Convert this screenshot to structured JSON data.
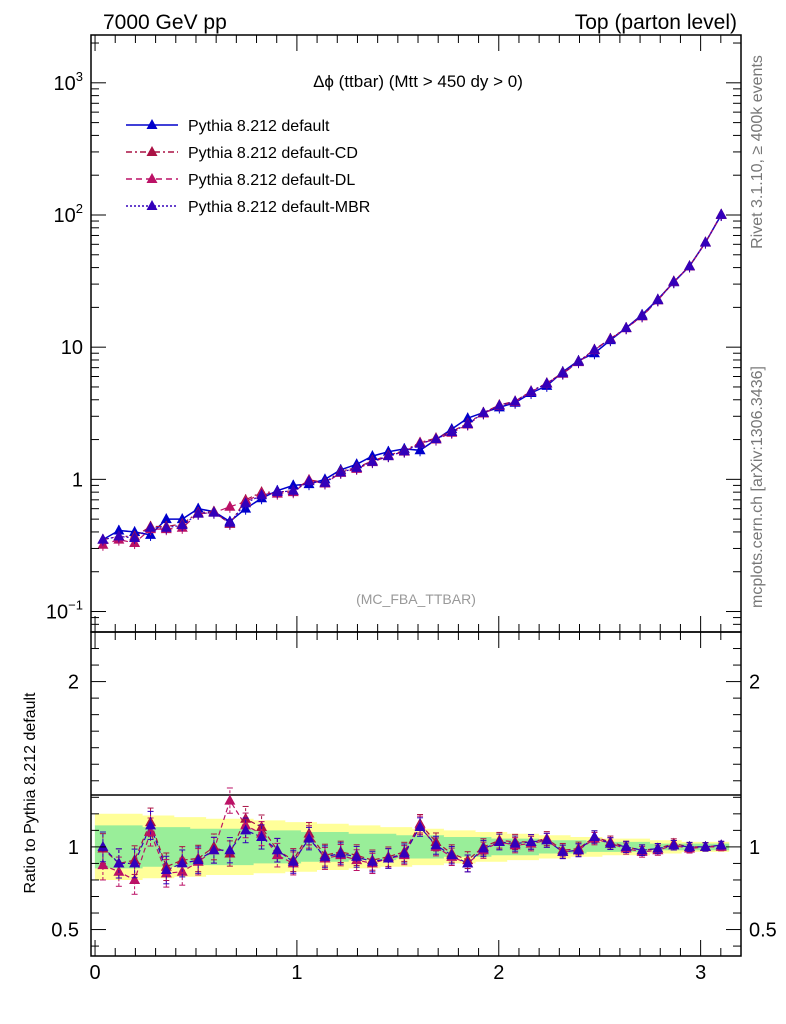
{
  "header": {
    "left": "7000 GeV pp",
    "right": "Top (parton level)"
  },
  "side_labels": {
    "rivet": "Rivet 3.1.10, ≥ 400k events",
    "mcplots": "mcplots.cern.ch [arXiv:1306.3436]"
  },
  "chart_data": [
    {
      "type": "line",
      "title": "Δϕ (ttbar) (Mtt > 450 dy > 0)",
      "watermark": "(MC_FBA_TTBAR)",
      "xlabel": "",
      "ylabel": "",
      "xlim": [
        -0.02,
        3.2
      ],
      "ylim": [
        0.07,
        2300
      ],
      "yscale": "log",
      "y_ticks": [
        {
          "value": 0.1,
          "base": "10",
          "exp": "−1"
        },
        {
          "value": 1,
          "base": "1",
          "exp": ""
        },
        {
          "value": 10,
          "base": "10",
          "exp": ""
        },
        {
          "value": 100,
          "base": "10",
          "exp": "2"
        },
        {
          "value": 1000,
          "base": "10",
          "exp": "3"
        }
      ],
      "legend_position": "top-left",
      "x": [
        0.039,
        0.118,
        0.196,
        0.275,
        0.353,
        0.432,
        0.511,
        0.589,
        0.668,
        0.746,
        0.825,
        0.903,
        0.982,
        1.06,
        1.139,
        1.217,
        1.296,
        1.374,
        1.453,
        1.532,
        1.61,
        1.689,
        1.767,
        1.846,
        1.924,
        2.003,
        2.081,
        2.16,
        2.238,
        2.317,
        2.395,
        2.474,
        2.553,
        2.631,
        2.71,
        2.788,
        2.867,
        2.945,
        3.024,
        3.102
      ],
      "series": [
        {
          "name": "Pythia 8.212 default",
          "color": "#0000cc",
          "style": "solid",
          "values": [
            0.35,
            0.41,
            0.4,
            0.38,
            0.5,
            0.5,
            0.6,
            0.57,
            0.48,
            0.6,
            0.72,
            0.82,
            0.9,
            0.92,
            1.0,
            1.18,
            1.3,
            1.5,
            1.62,
            1.7,
            1.66,
            2.0,
            2.4,
            2.9,
            3.2,
            3.5,
            3.8,
            4.5,
            5.1,
            6.5,
            7.9,
            9.0,
            11.3,
            14.0,
            17.6,
            23.0,
            31.0,
            41.0,
            62.0,
            100.0
          ]
        },
        {
          "name": "Pythia 8.212 default-CD",
          "color": "#aa1144",
          "style": "dashdot",
          "values": [
            0.35,
            0.37,
            0.37,
            0.44,
            0.44,
            0.46,
            0.56,
            0.57,
            0.46,
            0.7,
            0.8,
            0.8,
            0.82,
            0.99,
            0.95,
            1.15,
            1.23,
            1.38,
            1.52,
            1.65,
            1.9,
            2.05,
            2.3,
            2.65,
            3.2,
            3.65,
            3.9,
            4.65,
            5.35,
            6.4,
            7.8,
            9.6,
            11.6,
            14.0,
            17.3,
            22.8,
            31.5,
            41.0,
            62.0,
            101.0
          ]
        },
        {
          "name": "Pythia 8.212 default-DL",
          "color": "#bb1166",
          "style": "dashed",
          "values": [
            0.32,
            0.35,
            0.33,
            0.42,
            0.42,
            0.43,
            0.55,
            0.56,
            0.62,
            0.68,
            0.78,
            0.78,
            0.8,
            0.98,
            0.93,
            1.12,
            1.2,
            1.35,
            1.5,
            1.62,
            1.88,
            2.0,
            2.25,
            2.6,
            3.15,
            3.6,
            3.85,
            4.6,
            5.3,
            6.3,
            7.7,
            9.5,
            11.5,
            13.9,
            17.1,
            22.6,
            31.2,
            40.8,
            61.8,
            100.5
          ]
        },
        {
          "name": "Pythia 8.212 default-MBR",
          "color": "#3300bb",
          "style": "dotted",
          "values": [
            0.35,
            0.37,
            0.36,
            0.43,
            0.43,
            0.45,
            0.55,
            0.56,
            0.47,
            0.66,
            0.76,
            0.8,
            0.82,
            0.97,
            0.94,
            1.13,
            1.22,
            1.36,
            1.5,
            1.63,
            1.86,
            2.02,
            2.28,
            2.62,
            3.18,
            3.62,
            3.88,
            4.62,
            5.32,
            6.35,
            7.75,
            9.55,
            11.5,
            13.95,
            17.2,
            22.7,
            31.3,
            40.9,
            61.9,
            100.8
          ]
        }
      ]
    },
    {
      "type": "line",
      "ylabel": "Ratio to Pythia 8.212 default",
      "xlabel": "",
      "xlim": [
        -0.02,
        3.2
      ],
      "ylim": [
        0.34,
        2.3
      ],
      "x_ticks": [
        0,
        1,
        2,
        3
      ],
      "y_ticks": [
        0.5,
        1,
        2
      ],
      "band_green_halfwidth": [
        0.13,
        0.13,
        0.13,
        0.12,
        0.12,
        0.12,
        0.11,
        0.11,
        0.11,
        0.11,
        0.1,
        0.1,
        0.1,
        0.09,
        0.09,
        0.09,
        0.08,
        0.08,
        0.08,
        0.07,
        0.07,
        0.07,
        0.06,
        0.06,
        0.06,
        0.05,
        0.05,
        0.05,
        0.04,
        0.04,
        0.04,
        0.03,
        0.03,
        0.03,
        0.03,
        0.02,
        0.02,
        0.02,
        0.02,
        0.02
      ],
      "band_yellow_halfwidth": [
        0.2,
        0.2,
        0.2,
        0.19,
        0.19,
        0.18,
        0.18,
        0.17,
        0.17,
        0.17,
        0.16,
        0.16,
        0.15,
        0.15,
        0.14,
        0.14,
        0.13,
        0.13,
        0.12,
        0.12,
        0.11,
        0.11,
        0.1,
        0.1,
        0.09,
        0.09,
        0.08,
        0.08,
        0.07,
        0.07,
        0.06,
        0.06,
        0.05,
        0.05,
        0.05,
        0.04,
        0.04,
        0.03,
        0.03,
        0.03
      ],
      "series": [
        {
          "name": "Pythia 8.212 default-CD",
          "color": "#aa1144",
          "values": [
            0.99,
            0.9,
            0.92,
            1.15,
            0.88,
            0.92,
            0.93,
            1.0,
            0.96,
            1.17,
            1.12,
            0.98,
            0.92,
            1.08,
            0.95,
            0.97,
            0.95,
            0.92,
            0.94,
            0.97,
            1.14,
            1.03,
            0.96,
            0.92,
            1.0,
            1.04,
            1.03,
            1.03,
            1.05,
            0.98,
            0.99,
            1.06,
            1.03,
            1.0,
            0.98,
            0.99,
            1.02,
            1.0,
            1.0,
            1.01
          ]
        },
        {
          "name": "Pythia 8.212 default-DL",
          "color": "#bb1166",
          "values": [
            0.89,
            0.85,
            0.8,
            1.09,
            0.84,
            0.85,
            0.91,
            0.98,
            1.28,
            1.13,
            1.08,
            0.95,
            0.9,
            1.06,
            0.93,
            0.95,
            0.92,
            0.9,
            0.93,
            0.95,
            1.13,
            1.0,
            0.94,
            0.9,
            0.98,
            1.03,
            1.01,
            1.02,
            1.04,
            0.97,
            0.98,
            1.05,
            1.02,
            0.99,
            0.97,
            0.98,
            1.01,
            0.99,
            1.0,
            1.0
          ]
        },
        {
          "name": "Pythia 8.212 default-MBR",
          "color": "#3300bb",
          "values": [
            1.0,
            0.9,
            0.9,
            1.13,
            0.86,
            0.9,
            0.92,
            0.98,
            0.98,
            1.1,
            1.06,
            0.98,
            0.91,
            1.05,
            0.94,
            0.96,
            0.94,
            0.91,
            0.93,
            0.96,
            1.12,
            1.01,
            0.95,
            0.9,
            0.99,
            1.03,
            1.02,
            1.03,
            1.04,
            0.97,
            0.98,
            1.06,
            1.02,
            1.0,
            0.98,
            0.99,
            1.01,
            1.0,
            1.0,
            1.01
          ]
        }
      ]
    }
  ]
}
